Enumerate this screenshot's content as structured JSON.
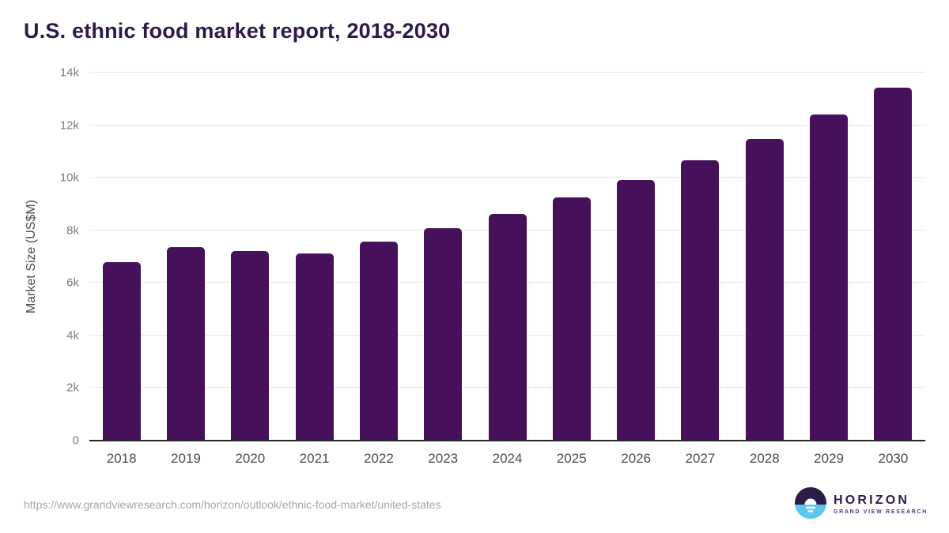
{
  "header": {
    "title": "U.S. ethnic food market report, 2018-2030"
  },
  "chart_data": {
    "type": "bar",
    "title": "U.S. ethnic food market report, 2018-2030",
    "categories": [
      "2018",
      "2019",
      "2020",
      "2021",
      "2022",
      "2023",
      "2024",
      "2025",
      "2026",
      "2027",
      "2028",
      "2029",
      "2030"
    ],
    "values": [
      6780,
      7350,
      7200,
      7110,
      7560,
      8070,
      8620,
      9240,
      9910,
      10670,
      11480,
      12400,
      13440
    ],
    "xlabel": "",
    "ylabel": "Market Size (US$M)",
    "ylim": [
      0,
      14000
    ],
    "ytick_step": 2000,
    "ytick_labels": [
      "0",
      "2k",
      "4k",
      "6k",
      "8k",
      "10k",
      "12k",
      "14k"
    ],
    "grid": true,
    "legend": false,
    "bar_color": "#46115a"
  },
  "footer": {
    "source_url": "https://www.grandviewresearch.com/horizon/outlook/ethnic-food-market/united-states",
    "logo": {
      "name": "HORIZON",
      "subtitle": "GRAND VIEW RESEARCH"
    }
  },
  "colors": {
    "bar": "#46115a",
    "title_text": "#2d1a4b",
    "gridline": "#e8e8e8",
    "axis_line": "#262626",
    "y_tick_text": "#7c7c7c",
    "x_tick_text": "#4c4c4c",
    "source_text": "#a6a6a6",
    "logo_dark_purple": "#2e1a47",
    "logo_sky_blue": "#5bc6f0"
  },
  "icons": {
    "logo_icon": "horizon-sun-circle-icon"
  }
}
